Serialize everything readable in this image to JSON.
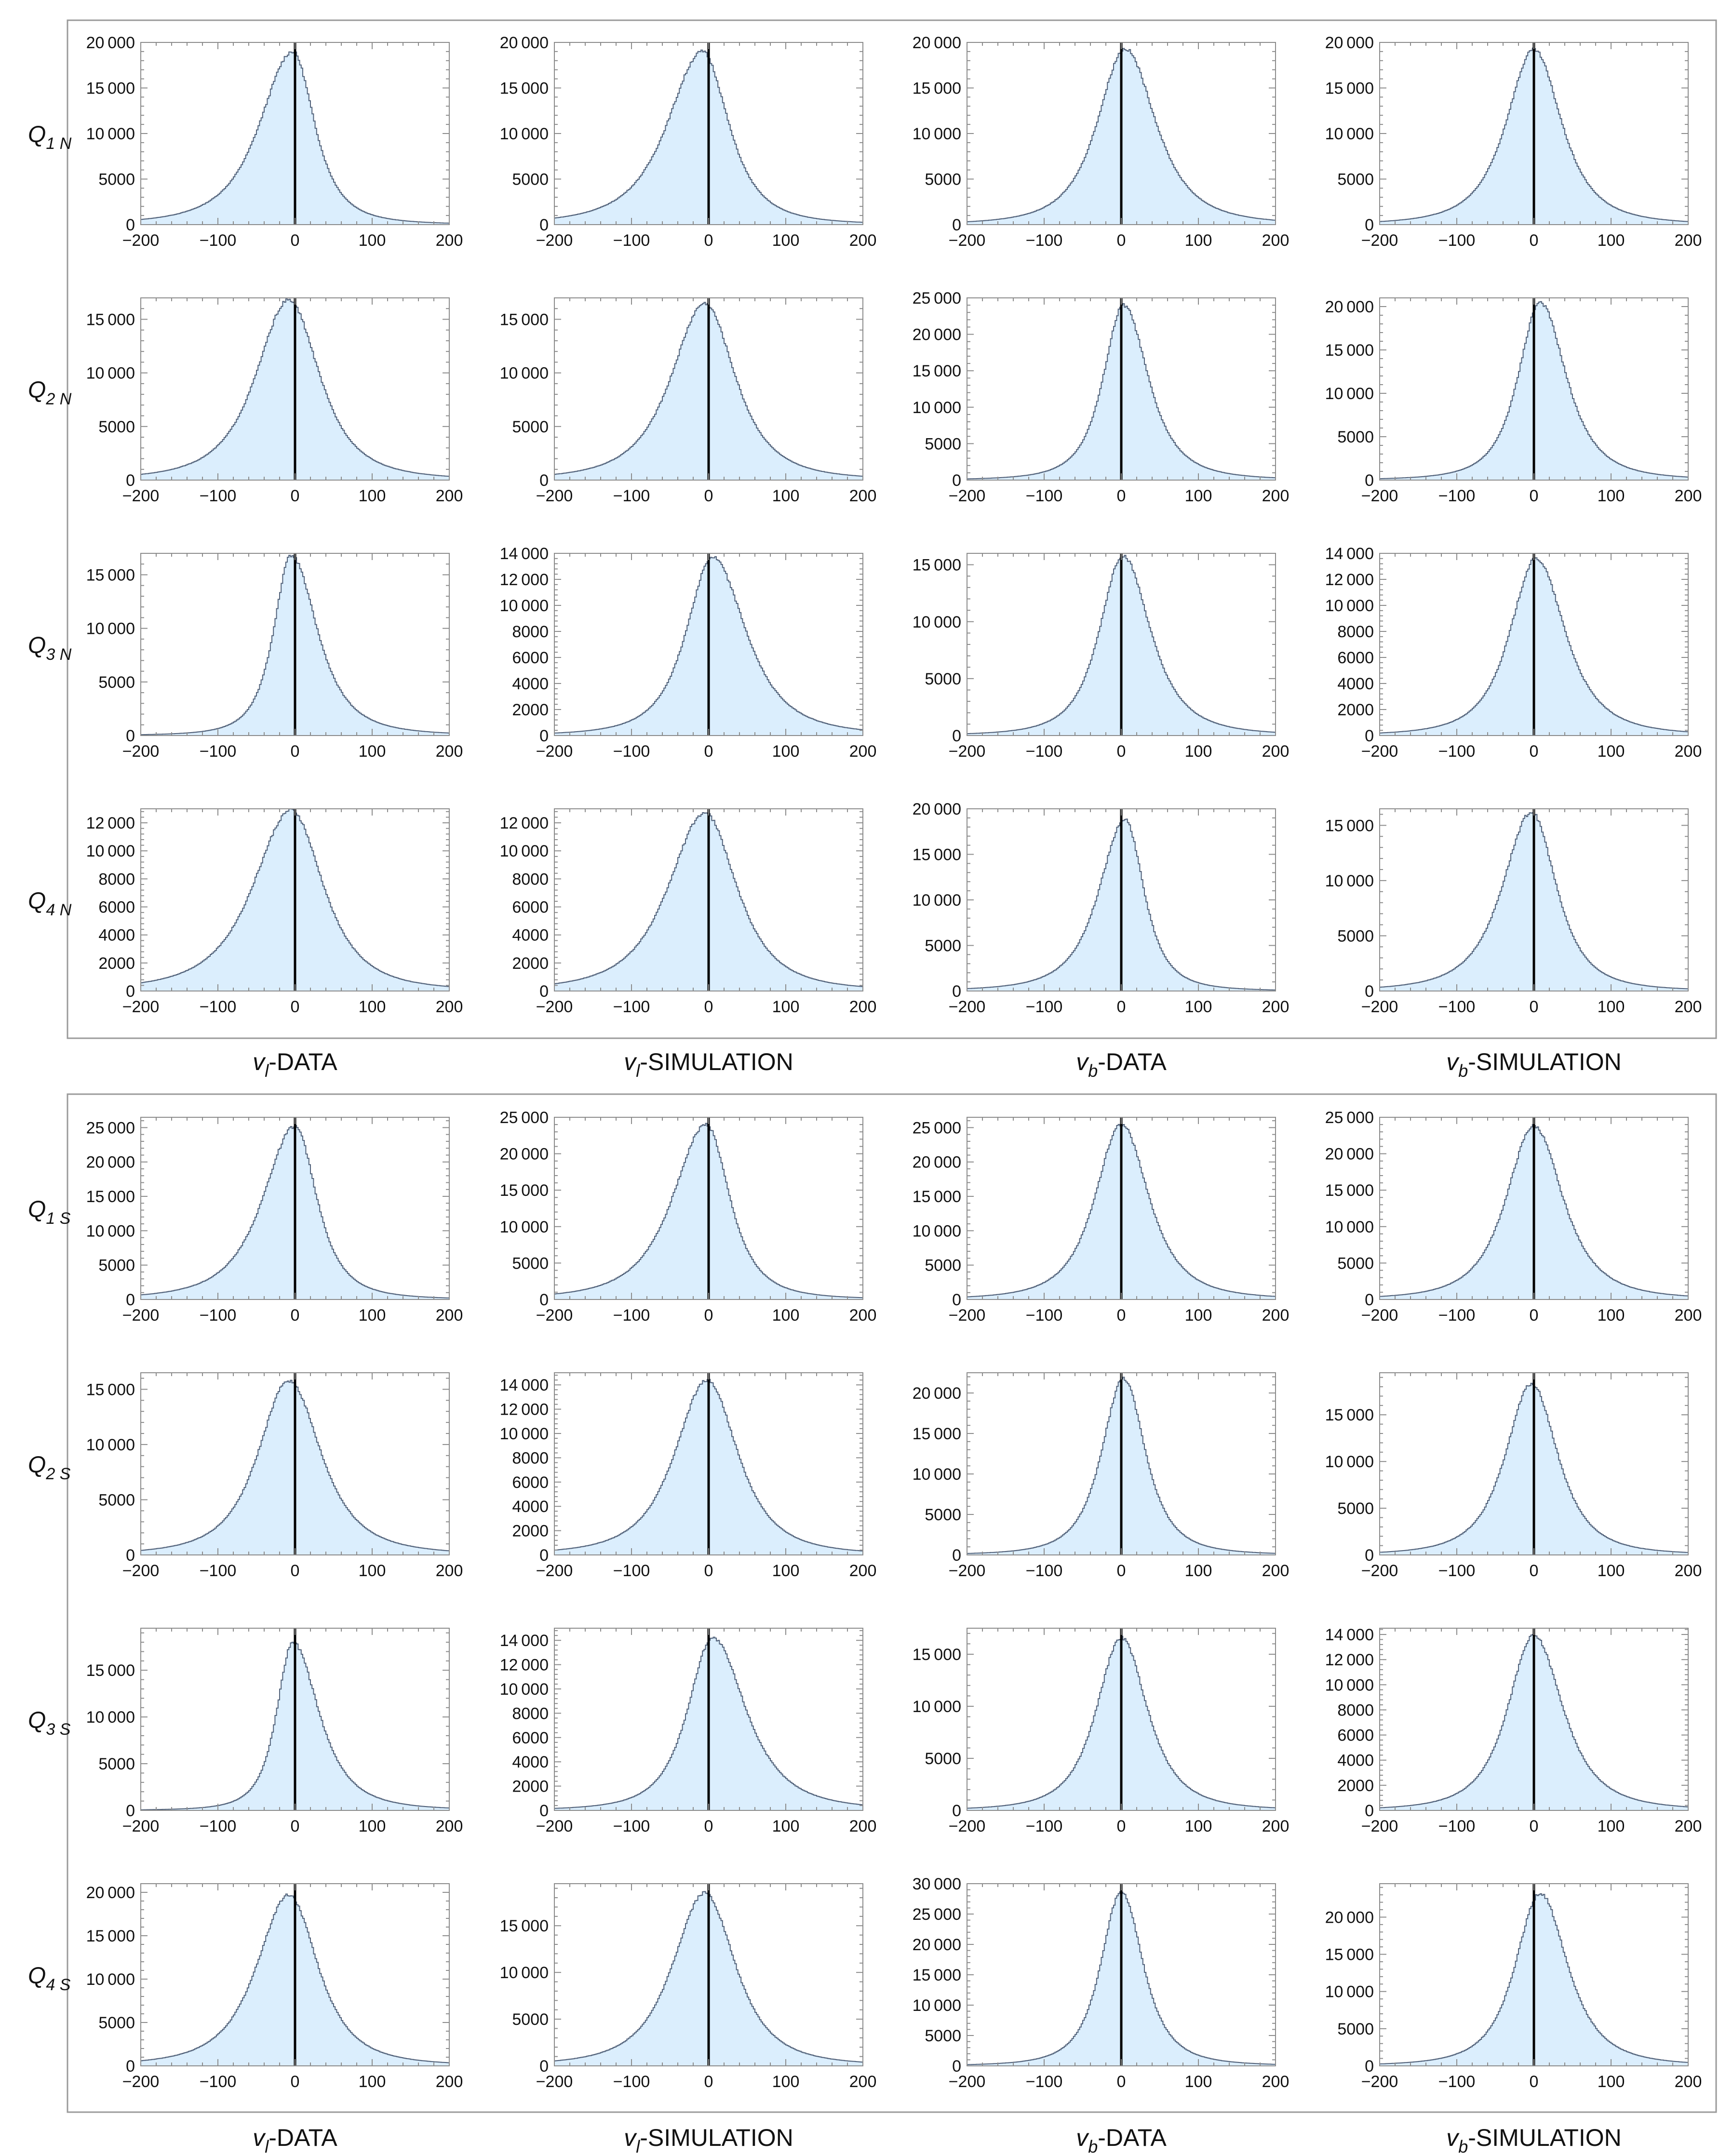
{
  "figure": {
    "column_labels": [
      {
        "sym": "v",
        "sub": "l",
        "rest": "-DATA"
      },
      {
        "sym": "v",
        "sub": "l",
        "rest": "-SIMULATION"
      },
      {
        "sym": "v",
        "sub": "b",
        "rest": "-DATA"
      },
      {
        "sym": "v",
        "sub": "b",
        "rest": "-SIMULATION"
      }
    ],
    "groups": [
      {
        "row_labels": [
          {
            "sym": "Q",
            "sub": "1 N"
          },
          {
            "sym": "Q",
            "sub": "2 N"
          },
          {
            "sym": "Q",
            "sub": "3 N"
          },
          {
            "sym": "Q",
            "sub": "4 N"
          }
        ]
      },
      {
        "row_labels": [
          {
            "sym": "Q",
            "sub": "1 S"
          },
          {
            "sym": "Q",
            "sub": "2 S"
          },
          {
            "sym": "Q",
            "sub": "3 S"
          },
          {
            "sym": "Q",
            "sub": "4 S"
          }
        ]
      }
    ],
    "colors": {
      "fill": "#dbeefd",
      "stroke": "#52627a",
      "zero_line": "#000000",
      "frame": "#8c8c8c",
      "group_box": "#9a9a9a"
    }
  },
  "chart_data": [
    {
      "type": "area",
      "group": 0,
      "row": 0,
      "col": 0,
      "xlim": [
        -200,
        200
      ],
      "ylim": [
        0,
        20000
      ],
      "x_ticks": [
        -200,
        -100,
        0,
        100,
        200
      ],
      "y_ticks": [
        0,
        5000,
        10000,
        15000,
        20000
      ],
      "peak": {
        "x": -3,
        "y": 19000
      },
      "width_left": 45,
      "width_right": 30
    },
    {
      "type": "area",
      "group": 0,
      "row": 0,
      "col": 1,
      "xlim": [
        -200,
        200
      ],
      "ylim": [
        0,
        20000
      ],
      "x_ticks": [
        -200,
        -100,
        0,
        100,
        200
      ],
      "y_ticks": [
        0,
        5000,
        10000,
        15000,
        20000
      ],
      "peak": {
        "x": -8,
        "y": 19000
      },
      "width_left": 48,
      "width_right": 36
    },
    {
      "type": "area",
      "group": 0,
      "row": 0,
      "col": 2,
      "xlim": [
        -200,
        200
      ],
      "ylim": [
        0,
        20000
      ],
      "x_ticks": [
        -200,
        -100,
        0,
        100,
        200
      ],
      "y_ticks": [
        0,
        5000,
        10000,
        15000,
        20000
      ],
      "peak": {
        "x": 5,
        "y": 19300
      },
      "width_left": 38,
      "width_right": 42
    },
    {
      "type": "area",
      "group": 0,
      "row": 0,
      "col": 3,
      "xlim": [
        -200,
        200
      ],
      "ylim": [
        0,
        20000
      ],
      "x_ticks": [
        -200,
        -100,
        0,
        100,
        200
      ],
      "y_ticks": [
        0,
        5000,
        10000,
        15000,
        20000
      ],
      "peak": {
        "x": 0,
        "y": 19200
      },
      "width_left": 38,
      "width_right": 38
    },
    {
      "type": "area",
      "group": 0,
      "row": 1,
      "col": 0,
      "xlim": [
        -200,
        200
      ],
      "ylim": [
        0,
        17000
      ],
      "x_ticks": [
        -200,
        -100,
        0,
        100,
        200
      ],
      "y_ticks": [
        0,
        5000,
        10000,
        15000
      ],
      "peak": {
        "x": -8,
        "y": 16800
      },
      "width_left": 45,
      "width_right": 42
    },
    {
      "type": "area",
      "group": 0,
      "row": 1,
      "col": 1,
      "xlim": [
        -200,
        200
      ],
      "ylim": [
        0,
        17000
      ],
      "x_ticks": [
        -200,
        -100,
        0,
        100,
        200
      ],
      "y_ticks": [
        0,
        5000,
        10000,
        15000
      ],
      "peak": {
        "x": -5,
        "y": 16500
      },
      "width_left": 46,
      "width_right": 42
    },
    {
      "type": "area",
      "group": 0,
      "row": 1,
      "col": 2,
      "xlim": [
        -200,
        200
      ],
      "ylim": [
        0,
        25000
      ],
      "x_ticks": [
        -200,
        -100,
        0,
        100,
        200
      ],
      "y_ticks": [
        0,
        5000,
        10000,
        15000,
        20000,
        25000
      ],
      "peak": {
        "x": 3,
        "y": 24000
      },
      "width_left": 28,
      "width_right": 34
    },
    {
      "type": "area",
      "group": 0,
      "row": 1,
      "col": 3,
      "xlim": [
        -200,
        200
      ],
      "ylim": [
        0,
        21000
      ],
      "x_ticks": [
        -200,
        -100,
        0,
        100,
        200
      ],
      "y_ticks": [
        0,
        5000,
        10000,
        15000,
        20000
      ],
      "peak": {
        "x": 8,
        "y": 20500
      },
      "width_left": 30,
      "width_right": 36
    },
    {
      "type": "area",
      "group": 0,
      "row": 2,
      "col": 0,
      "xlim": [
        -200,
        200
      ],
      "ylim": [
        0,
        17000
      ],
      "x_ticks": [
        -200,
        -100,
        0,
        100,
        200
      ],
      "y_ticks": [
        0,
        5000,
        10000,
        15000
      ],
      "peak": {
        "x": -5,
        "y": 16800
      },
      "width_left": 24,
      "width_right": 36
    },
    {
      "type": "area",
      "group": 0,
      "row": 2,
      "col": 1,
      "xlim": [
        -200,
        200
      ],
      "ylim": [
        0,
        14000
      ],
      "x_ticks": [
        -200,
        -100,
        0,
        100,
        200
      ],
      "y_ticks": [
        0,
        2000,
        4000,
        6000,
        8000,
        10000,
        12000,
        14000
      ],
      "peak": {
        "x": 5,
        "y": 13700
      },
      "width_left": 36,
      "width_right": 46
    },
    {
      "type": "area",
      "group": 0,
      "row": 2,
      "col": 2,
      "xlim": [
        -200,
        200
      ],
      "ylim": [
        0,
        16000
      ],
      "x_ticks": [
        -200,
        -100,
        0,
        100,
        200
      ],
      "y_ticks": [
        0,
        5000,
        10000,
        15000
      ],
      "peak": {
        "x": 2,
        "y": 15800
      },
      "width_left": 32,
      "width_right": 38
    },
    {
      "type": "area",
      "group": 0,
      "row": 2,
      "col": 3,
      "xlim": [
        -200,
        200
      ],
      "ylim": [
        0,
        14000
      ],
      "x_ticks": [
        -200,
        -100,
        0,
        100,
        200
      ],
      "y_ticks": [
        0,
        2000,
        4000,
        6000,
        8000,
        10000,
        12000,
        14000
      ],
      "peak": {
        "x": 3,
        "y": 13600
      },
      "width_left": 36,
      "width_right": 40
    },
    {
      "type": "area",
      "group": 0,
      "row": 3,
      "col": 0,
      "xlim": [
        -200,
        200
      ],
      "ylim": [
        0,
        13000
      ],
      "x_ticks": [
        -200,
        -100,
        0,
        100,
        200
      ],
      "y_ticks": [
        0,
        2000,
        4000,
        6000,
        8000,
        10000,
        12000
      ],
      "peak": {
        "x": -5,
        "y": 12900
      },
      "width_left": 52,
      "width_right": 44
    },
    {
      "type": "area",
      "group": 0,
      "row": 3,
      "col": 1,
      "xlim": [
        -200,
        200
      ],
      "ylim": [
        0,
        13000
      ],
      "x_ticks": [
        -200,
        -100,
        0,
        100,
        200
      ],
      "y_ticks": [
        0,
        2000,
        4000,
        6000,
        8000,
        10000,
        12000
      ],
      "peak": {
        "x": -5,
        "y": 12700
      },
      "width_left": 50,
      "width_right": 44
    },
    {
      "type": "area",
      "group": 0,
      "row": 3,
      "col": 2,
      "xlim": [
        -200,
        200
      ],
      "ylim": [
        0,
        20000
      ],
      "x_ticks": [
        -200,
        -100,
        0,
        100,
        200
      ],
      "y_ticks": [
        0,
        5000,
        10000,
        15000,
        20000
      ],
      "peak": {
        "x": 5,
        "y": 18800
      },
      "width_left": 36,
      "width_right": 26
    },
    {
      "type": "area",
      "group": 0,
      "row": 3,
      "col": 3,
      "xlim": [
        -200,
        200
      ],
      "ylim": [
        0,
        16500
      ],
      "x_ticks": [
        -200,
        -100,
        0,
        100,
        200
      ],
      "y_ticks": [
        0,
        5000,
        10000,
        15000
      ],
      "peak": {
        "x": -3,
        "y": 16200
      },
      "width_left": 40,
      "width_right": 34
    },
    {
      "type": "area",
      "group": 1,
      "row": 0,
      "col": 0,
      "xlim": [
        -200,
        200
      ],
      "ylim": [
        0,
        26500
      ],
      "x_ticks": [
        -200,
        -100,
        0,
        100,
        200
      ],
      "y_ticks": [
        0,
        5000,
        10000,
        15000,
        20000,
        25000
      ],
      "peak": {
        "x": 0,
        "y": 25200
      },
      "width_left": 44,
      "width_right": 30
    },
    {
      "type": "area",
      "group": 1,
      "row": 0,
      "col": 1,
      "xlim": [
        -200,
        200
      ],
      "ylim": [
        0,
        25000
      ],
      "x_ticks": [
        -200,
        -100,
        0,
        100,
        200
      ],
      "y_ticks": [
        0,
        5000,
        10000,
        15000,
        20000,
        25000
      ],
      "peak": {
        "x": -3,
        "y": 24000
      },
      "width_left": 46,
      "width_right": 32
    },
    {
      "type": "area",
      "group": 1,
      "row": 0,
      "col": 2,
      "xlim": [
        -200,
        200
      ],
      "ylim": [
        0,
        26500
      ],
      "x_ticks": [
        -200,
        -100,
        0,
        100,
        200
      ],
      "y_ticks": [
        0,
        5000,
        10000,
        15000,
        20000,
        25000
      ],
      "peak": {
        "x": 0,
        "y": 25500
      },
      "width_left": 36,
      "width_right": 38
    },
    {
      "type": "area",
      "group": 1,
      "row": 0,
      "col": 3,
      "xlim": [
        -200,
        200
      ],
      "ylim": [
        0,
        25000
      ],
      "x_ticks": [
        -200,
        -100,
        0,
        100,
        200
      ],
      "y_ticks": [
        0,
        5000,
        10000,
        15000,
        20000,
        25000
      ],
      "peak": {
        "x": 0,
        "y": 23800
      },
      "width_left": 38,
      "width_right": 40
    },
    {
      "type": "area",
      "group": 1,
      "row": 1,
      "col": 0,
      "xlim": [
        -200,
        200
      ],
      "ylim": [
        0,
        16500
      ],
      "x_ticks": [
        -200,
        -100,
        0,
        100,
        200
      ],
      "y_ticks": [
        0,
        5000,
        10000,
        15000
      ],
      "peak": {
        "x": -8,
        "y": 15800
      },
      "width_left": 42,
      "width_right": 44
    },
    {
      "type": "area",
      "group": 1,
      "row": 1,
      "col": 1,
      "xlim": [
        -200,
        200
      ],
      "ylim": [
        0,
        15000
      ],
      "x_ticks": [
        -200,
        -100,
        0,
        100,
        200
      ],
      "y_ticks": [
        0,
        2000,
        4000,
        6000,
        8000,
        10000,
        12000,
        14000
      ],
      "peak": {
        "x": -2,
        "y": 14400
      },
      "width_left": 44,
      "width_right": 42
    },
    {
      "type": "area",
      "group": 1,
      "row": 1,
      "col": 2,
      "xlim": [
        -200,
        200
      ],
      "ylim": [
        0,
        22500
      ],
      "x_ticks": [
        -200,
        -100,
        0,
        100,
        200
      ],
      "y_ticks": [
        0,
        5000,
        10000,
        15000,
        20000
      ],
      "peak": {
        "x": 3,
        "y": 21800
      },
      "width_left": 30,
      "width_right": 30
    },
    {
      "type": "area",
      "group": 1,
      "row": 1,
      "col": 3,
      "xlim": [
        -200,
        200
      ],
      "ylim": [
        0,
        19500
      ],
      "x_ticks": [
        -200,
        -100,
        0,
        100,
        200
      ],
      "y_ticks": [
        0,
        5000,
        10000,
        15000
      ],
      "peak": {
        "x": -3,
        "y": 18300
      },
      "width_left": 36,
      "width_right": 36
    },
    {
      "type": "area",
      "group": 1,
      "row": 2,
      "col": 0,
      "xlim": [
        -200,
        200
      ],
      "ylim": [
        0,
        19500
      ],
      "x_ticks": [
        -200,
        -100,
        0,
        100,
        200
      ],
      "y_ticks": [
        0,
        5000,
        10000,
        15000
      ],
      "peak": {
        "x": -3,
        "y": 18000
      },
      "width_left": 22,
      "width_right": 36
    },
    {
      "type": "area",
      "group": 1,
      "row": 2,
      "col": 1,
      "xlim": [
        -200,
        200
      ],
      "ylim": [
        0,
        15000
      ],
      "x_ticks": [
        -200,
        -100,
        0,
        100,
        200
      ],
      "y_ticks": [
        0,
        2000,
        4000,
        6000,
        8000,
        10000,
        12000,
        14000
      ],
      "peak": {
        "x": 5,
        "y": 14200
      },
      "width_left": 34,
      "width_right": 46
    },
    {
      "type": "area",
      "group": 1,
      "row": 2,
      "col": 2,
      "xlim": [
        -200,
        200
      ],
      "ylim": [
        0,
        17500
      ],
      "x_ticks": [
        -200,
        -100,
        0,
        100,
        200
      ],
      "y_ticks": [
        0,
        5000,
        10000,
        15000
      ],
      "peak": {
        "x": 0,
        "y": 16600
      },
      "width_left": 34,
      "width_right": 36
    },
    {
      "type": "area",
      "group": 1,
      "row": 2,
      "col": 3,
      "xlim": [
        -200,
        200
      ],
      "ylim": [
        0,
        14500
      ],
      "x_ticks": [
        -200,
        -100,
        0,
        100,
        200
      ],
      "y_ticks": [
        0,
        2000,
        4000,
        6000,
        8000,
        10000,
        12000,
        14000
      ],
      "peak": {
        "x": 0,
        "y": 13900
      },
      "width_left": 36,
      "width_right": 40
    },
    {
      "type": "area",
      "group": 1,
      "row": 3,
      "col": 0,
      "xlim": [
        -200,
        200
      ],
      "ylim": [
        0,
        21000
      ],
      "x_ticks": [
        -200,
        -100,
        0,
        100,
        200
      ],
      "y_ticks": [
        0,
        5000,
        10000,
        15000,
        20000
      ],
      "peak": {
        "x": -8,
        "y": 19700
      },
      "width_left": 44,
      "width_right": 40
    },
    {
      "type": "area",
      "group": 1,
      "row": 3,
      "col": 1,
      "xlim": [
        -200,
        200
      ],
      "ylim": [
        0,
        19500
      ],
      "x_ticks": [
        -200,
        -100,
        0,
        100,
        200
      ],
      "y_ticks": [
        0,
        5000,
        10000,
        15000
      ],
      "peak": {
        "x": -5,
        "y": 18500
      },
      "width_left": 44,
      "width_right": 42
    },
    {
      "type": "area",
      "group": 1,
      "row": 3,
      "col": 2,
      "xlim": [
        -200,
        200
      ],
      "ylim": [
        0,
        30000
      ],
      "x_ticks": [
        -200,
        -100,
        0,
        100,
        200
      ],
      "y_ticks": [
        0,
        5000,
        10000,
        15000,
        20000,
        25000,
        30000
      ],
      "peak": {
        "x": 0,
        "y": 28700
      },
      "width_left": 28,
      "width_right": 30
    },
    {
      "type": "area",
      "group": 1,
      "row": 3,
      "col": 3,
      "xlim": [
        -200,
        200
      ],
      "ylim": [
        0,
        24500
      ],
      "x_ticks": [
        -200,
        -100,
        0,
        100,
        200
      ],
      "y_ticks": [
        0,
        5000,
        10000,
        15000,
        20000
      ],
      "peak": {
        "x": 8,
        "y": 23200
      },
      "width_left": 34,
      "width_right": 38
    }
  ]
}
